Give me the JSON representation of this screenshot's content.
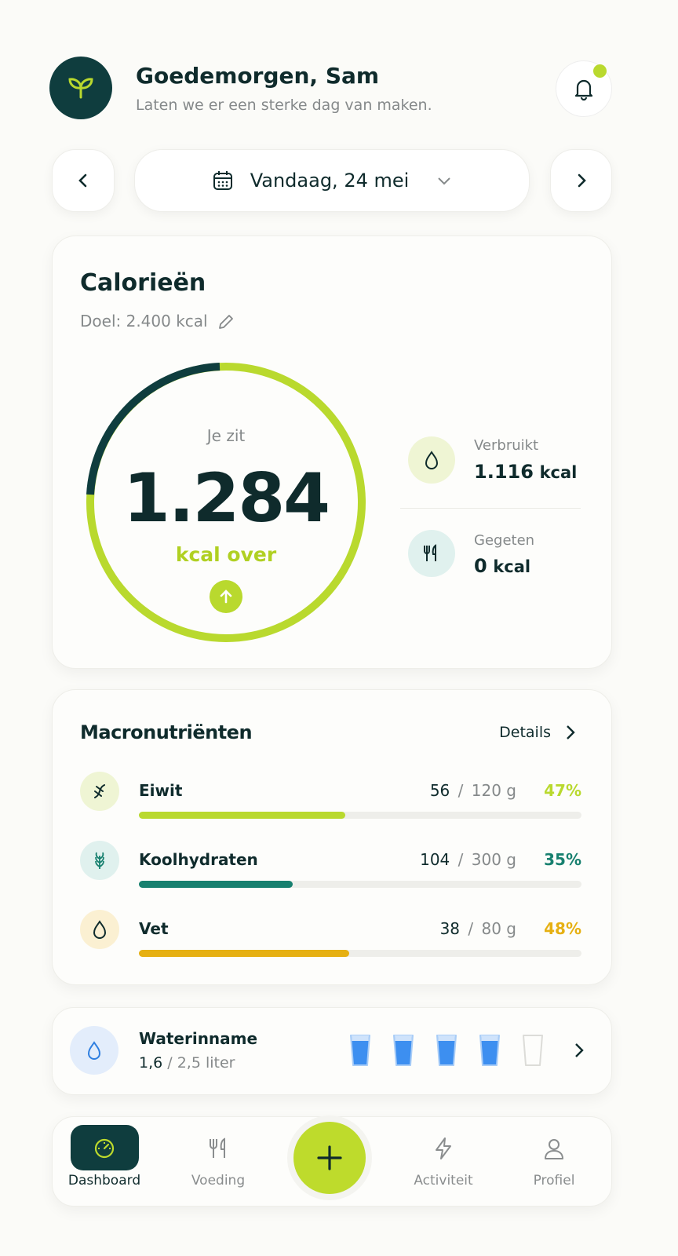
{
  "header": {
    "greeting": "Goedemorgen, Sam",
    "subtitle": "Laten we er een sterke dag van maken."
  },
  "date_selector": {
    "label": "Vandaag, 24 mei"
  },
  "calories": {
    "title": "Calorieën",
    "goal": "Doel: 2.400 kcal",
    "status_prefix": "Je zit",
    "remaining": "1.284",
    "status_suffix": "kcal over",
    "burned": {
      "label": "Verbruikt",
      "value": "1.116",
      "unit": "kcal"
    },
    "eaten": {
      "label": "Gegeten",
      "value": "0",
      "unit": "kcal"
    }
  },
  "macros": {
    "title": "Macronutriënten",
    "details": "Details",
    "separator": "/",
    "items": [
      {
        "name": "Eiwit",
        "eaten": 56,
        "goal": 120,
        "unit": "g",
        "percent": "47%",
        "color": "#b9d92e"
      },
      {
        "name": "Koolhydraten",
        "eaten": 104,
        "goal": 300,
        "unit": "g",
        "percent": "35%",
        "color": "#17806f"
      },
      {
        "name": "Vet",
        "eaten": 38,
        "goal": 80,
        "unit": "g",
        "percent": "48%",
        "color": "#e6b012"
      }
    ]
  },
  "water": {
    "title": "Waterinname",
    "amount": "1,6",
    "separator": "/",
    "goal": "2,5 liter",
    "glasses": [
      true,
      true,
      true,
      true,
      false
    ]
  },
  "nav": {
    "items": [
      "Dashboard",
      "Voeding",
      "Activiteit",
      "Profiel"
    ],
    "active": 0
  }
}
